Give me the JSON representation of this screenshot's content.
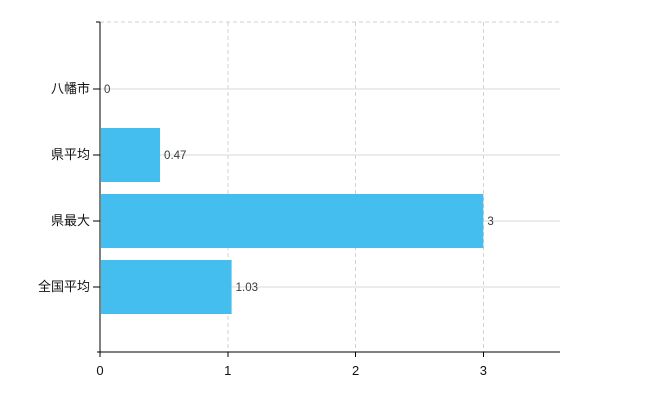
{
  "chart_data": {
    "type": "bar",
    "orientation": "horizontal",
    "title": "",
    "xlabel": "",
    "ylabel": "",
    "categories": [
      "八幡市",
      "県平均",
      "県最大",
      "全国平均"
    ],
    "values": [
      0,
      0.47,
      3,
      1.03
    ],
    "value_labels": [
      "0",
      "0.47",
      "3",
      "1.03"
    ],
    "x_ticks": [
      0,
      1,
      2,
      3
    ],
    "x_tick_labels": [
      "0",
      "1",
      "2",
      "3"
    ],
    "xlim": [
      0,
      3.6
    ],
    "grid": true,
    "legend_position": "none",
    "colors": {
      "bar": "#44BEEE",
      "axis": "#000000",
      "category_text": "#111111",
      "tick_text": "#111111",
      "value_text": "#3a3a3a",
      "grid_horizontal": "#d5dcd2",
      "grid_vertical": "#d8ced6",
      "plot_top_border": "#d8ced6",
      "background": "#ffffff"
    }
  }
}
